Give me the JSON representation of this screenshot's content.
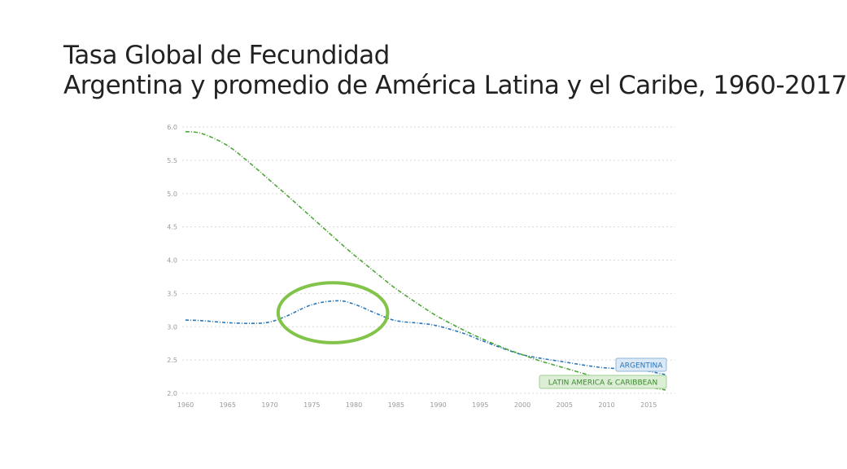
{
  "slide": {
    "title_line1": "Tasa Global de Fecundidad",
    "title_line2": "Argentina y promedio de América Latina y el Caribe, 1960-2017"
  },
  "colors": {
    "argentina": "#2a76b8",
    "latam": "#4ea63a",
    "highlight": "#82c44a",
    "grid": "#d8d8d8",
    "argentina_label_bg": "#dbe8f6",
    "latam_label_bg": "#dcefd6"
  },
  "chart_data": {
    "type": "line",
    "title": "",
    "xlabel": "",
    "ylabel": "",
    "xlim": [
      1960,
      2017
    ],
    "ylim": [
      2.0,
      6.0
    ],
    "grid": true,
    "x_ticks": [
      "1960",
      "1965",
      "1970",
      "1975",
      "1980",
      "1985",
      "1990",
      "1995",
      "2000",
      "2005",
      "2010",
      "2015"
    ],
    "y_ticks": [
      "2.0",
      "2.5",
      "3.0",
      "3.5",
      "4.0",
      "4.5",
      "5.0",
      "5.5",
      "6.0"
    ],
    "x": [
      1960,
      1962,
      1965,
      1968,
      1970,
      1972,
      1975,
      1978,
      1980,
      1983,
      1985,
      1988,
      1990,
      1993,
      1995,
      1998,
      2000,
      2002,
      2005,
      2008,
      2010,
      2013,
      2015,
      2017
    ],
    "series": [
      {
        "name": "ARGENTINA",
        "values": [
          3.1,
          3.09,
          3.06,
          3.05,
          3.07,
          3.16,
          3.33,
          3.39,
          3.34,
          3.18,
          3.09,
          3.05,
          3.01,
          2.9,
          2.8,
          2.66,
          2.58,
          2.53,
          2.47,
          2.41,
          2.38,
          2.36,
          2.33,
          2.28
        ]
      },
      {
        "name": "LATIN AMERICA & CARIBBEAN",
        "values": [
          5.93,
          5.9,
          5.72,
          5.42,
          5.2,
          4.98,
          4.64,
          4.3,
          4.08,
          3.77,
          3.57,
          3.31,
          3.15,
          2.95,
          2.83,
          2.67,
          2.58,
          2.49,
          2.38,
          2.27,
          2.21,
          2.13,
          2.09,
          2.05
        ]
      }
    ],
    "annotations": [
      {
        "type": "ellipse",
        "center_x": 1977.5,
        "center_y": 3.21,
        "radius_x": 6.5,
        "radius_y": 0.45
      }
    ]
  }
}
